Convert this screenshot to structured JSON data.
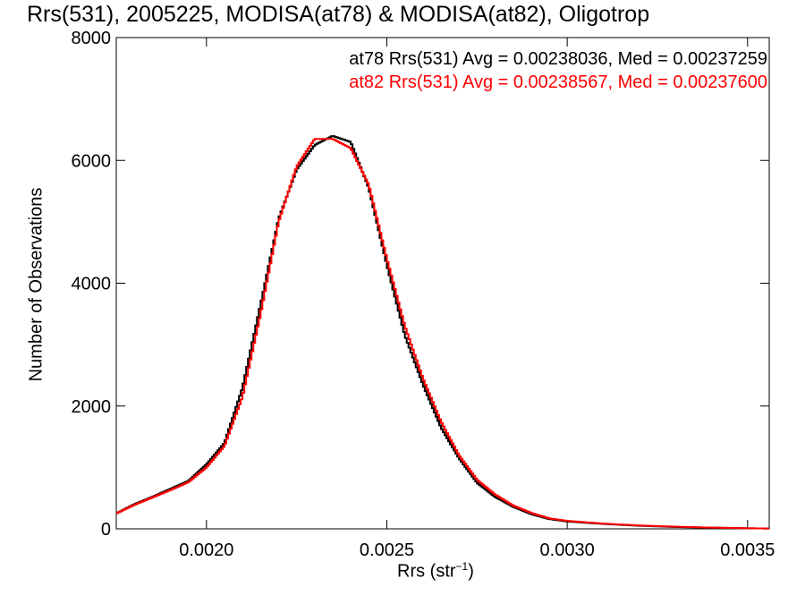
{
  "title": "Rrs(531), 2005225, MODISA(at78) & MODISA(at82), Oligotrop",
  "xlabel_main": "Rrs (str",
  "xlabel_sup": "−1",
  "xlabel_close": ")",
  "ylabel": "Number of Observations",
  "chart_data": {
    "type": "line",
    "title": "Rrs(531), 2005225, MODISA(at78) & MODISA(at82), Oligotrop",
    "xlabel": "Rrs (str⁻¹)",
    "ylabel": "Number of Observations",
    "xlim": [
      0.00175,
      0.00356
    ],
    "ylim": [
      0,
      8000
    ],
    "x_ticks": [
      "0.0020",
      "0.0025",
      "0.0030",
      "0.0035"
    ],
    "x_tick_values": [
      0.002,
      0.0025,
      0.003,
      0.0035
    ],
    "y_ticks": [
      "0",
      "2000",
      "4000",
      "6000",
      "8000"
    ],
    "y_tick_values": [
      0,
      2000,
      4000,
      6000,
      8000
    ],
    "grid": false,
    "legend_position": "top-right",
    "annotations": [
      "at78 Rrs(531) Avg = 0.00238036, Med = 0.00237259",
      "at82 Rrs(531) Avg = 0.00238567, Med = 0.00237600"
    ],
    "series": [
      {
        "color": "#000000",
        "x": [
          0.00175,
          0.0018,
          0.00185,
          0.0019,
          0.00195,
          0.002,
          0.00205,
          0.0021,
          0.00215,
          0.0022,
          0.00225,
          0.0023,
          0.00235,
          0.0024,
          0.00245,
          0.0025,
          0.00255,
          0.0026,
          0.00265,
          0.0027,
          0.00275,
          0.0028,
          0.00285,
          0.0029,
          0.00295,
          0.003,
          0.0031,
          0.0032,
          0.0033,
          0.0034,
          0.0035,
          0.00356
        ],
        "y": [
          250,
          400,
          520,
          650,
          780,
          1050,
          1400,
          2300,
          3650,
          5050,
          5850,
          6250,
          6400,
          6300,
          5550,
          4300,
          3150,
          2350,
          1650,
          1150,
          750,
          520,
          360,
          240,
          160,
          120,
          80,
          50,
          30,
          20,
          10,
          5
        ]
      },
      {
        "color": "#ff0000",
        "x": [
          0.00175,
          0.0018,
          0.00185,
          0.0019,
          0.00195,
          0.002,
          0.00205,
          0.0021,
          0.00215,
          0.0022,
          0.00225,
          0.0023,
          0.00235,
          0.0024,
          0.00245,
          0.0025,
          0.00255,
          0.0026,
          0.00265,
          0.0027,
          0.00275,
          0.0028,
          0.00285,
          0.0029,
          0.00295,
          0.003,
          0.0031,
          0.0032,
          0.0033,
          0.0034,
          0.0035,
          0.00356
        ],
        "y": [
          250,
          390,
          510,
          630,
          760,
          1000,
          1350,
          2150,
          3500,
          5000,
          5900,
          6350,
          6350,
          6200,
          5600,
          4400,
          3300,
          2450,
          1750,
          1200,
          800,
          560,
          380,
          260,
          170,
          130,
          85,
          55,
          35,
          20,
          10,
          5
        ]
      }
    ]
  }
}
